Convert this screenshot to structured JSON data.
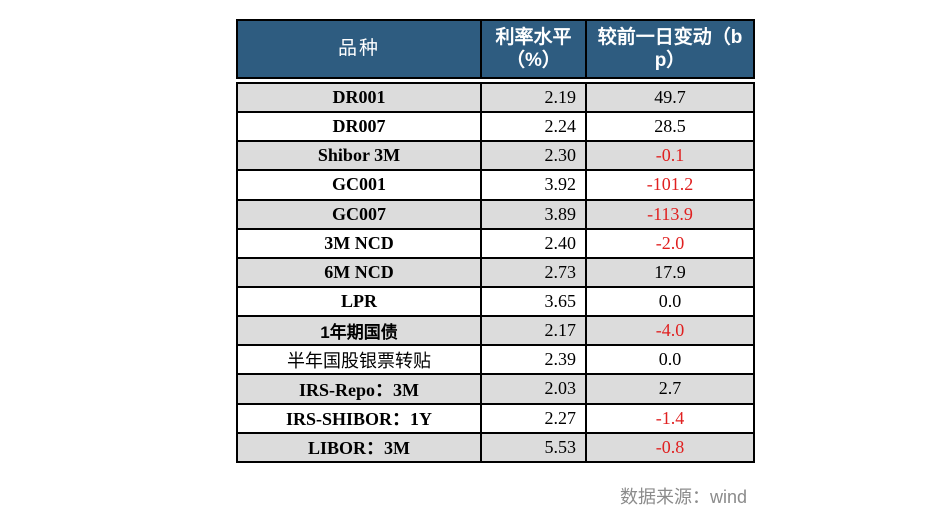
{
  "table": {
    "header": {
      "variety": "品种",
      "rate_level": "利率水平\n（%）",
      "daily_change": "较前一日变动（b\np）"
    },
    "rows": [
      {
        "name": "DR001",
        "rate": "2.19",
        "change": "49.7"
      },
      {
        "name": "DR007",
        "rate": "2.24",
        "change": "28.5"
      },
      {
        "name": "Shibor 3M",
        "rate": "2.30",
        "change": "-0.1"
      },
      {
        "name": "GC001",
        "rate": "3.92",
        "change": "-101.2"
      },
      {
        "name": "GC007",
        "rate": "3.89",
        "change": "-113.9"
      },
      {
        "name": "3M NCD",
        "rate": "2.40",
        "change": "-2.0"
      },
      {
        "name": "6M NCD",
        "rate": "2.73",
        "change": "17.9"
      },
      {
        "name": "LPR",
        "rate": "3.65",
        "change": "0.0"
      },
      {
        "name": "1年期国债",
        "rate": "2.17",
        "change": "-4.0"
      },
      {
        "name": "半年国股银票转贴",
        "rate": "2.39",
        "change": "0.0"
      },
      {
        "name": "IRS-Repo：3M",
        "rate": "2.03",
        "change": "2.7"
      },
      {
        "name": "IRS-SHIBOR：1Y",
        "rate": "2.27",
        "change": "-1.4"
      },
      {
        "name": "LIBOR：3M",
        "rate": "5.53",
        "change": "-0.8"
      }
    ],
    "colors": {
      "header_bg": "#2e5c80",
      "header_text": "#ffffff",
      "row_alt_bg": "#dcdcdc",
      "negative_value": "#e02020",
      "border": "#000000"
    }
  },
  "footer": {
    "source_label": "数据来源：wind"
  },
  "chart_data": {
    "type": "table",
    "title": "",
    "columns": [
      "品种",
      "利率水平（%）",
      "较前一日变动（bp）"
    ],
    "rows": [
      [
        "DR001",
        2.19,
        49.7
      ],
      [
        "DR007",
        2.24,
        28.5
      ],
      [
        "Shibor 3M",
        2.3,
        -0.1
      ],
      [
        "GC001",
        3.92,
        -101.2
      ],
      [
        "GC007",
        3.89,
        -113.9
      ],
      [
        "3M NCD",
        2.4,
        -2.0
      ],
      [
        "6M NCD",
        2.73,
        17.9
      ],
      [
        "LPR",
        3.65,
        0.0
      ],
      [
        "1年期国债",
        2.17,
        -4.0
      ],
      [
        "半年国股银票转贴",
        2.39,
        0.0
      ],
      [
        "IRS-Repo：3M",
        2.03,
        2.7
      ],
      [
        "IRS-SHIBOR：1Y",
        2.27,
        -1.4
      ],
      [
        "LIBOR：3M",
        5.53,
        -0.8
      ]
    ],
    "annotations": [
      "数据来源：wind"
    ],
    "layout_hints": {
      "header_background": "#2e5c80",
      "alternating_rows": true,
      "negative_values_red": true
    }
  }
}
